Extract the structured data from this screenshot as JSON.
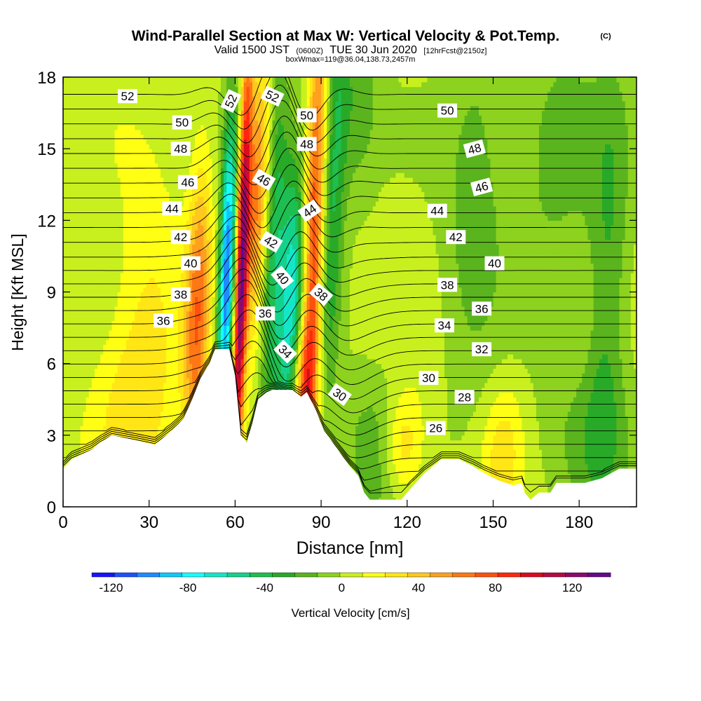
{
  "chart_data": {
    "type": "heatmap",
    "title": "Wind-Parallel Section at Max W: Vertical Velocity & Pot.Temp.",
    "title_mark": "(C)",
    "subtitle_parts": [
      "Valid 1500 JST",
      "(0600Z)",
      "TUE 30 Jun 2020",
      "[12hrFcst@2150z]"
    ],
    "subtitle2": "boxWmax=119@36.04,138.73,2457m",
    "xlabel": "Distance [nm]",
    "ylabel": "Height [Kft MSL]",
    "xlim": [
      0,
      200
    ],
    "ylim": [
      0,
      18
    ],
    "x_ticks": [
      "0",
      "30",
      "60",
      "90",
      "120",
      "150",
      "180"
    ],
    "y_ticks": [
      "0",
      "3",
      "6",
      "9",
      "12",
      "15",
      "18"
    ],
    "colorbar": {
      "label": "Vertical Velocity [cm/s]",
      "range": [
        -130,
        140
      ],
      "tick_labels": [
        "-120",
        "-80",
        "-40",
        "0",
        "40",
        "80",
        "120"
      ],
      "colors": [
        "#1414ff",
        "#1e50ff",
        "#1e8cff",
        "#0fc8ff",
        "#14ffff",
        "#14e6c8",
        "#14d28c",
        "#1ebe50",
        "#28aa28",
        "#5ab41e",
        "#8cd21e",
        "#c8f01e",
        "#ffff14",
        "#ffe614",
        "#ffc81e",
        "#ffa01e",
        "#ff7814",
        "#ff500f",
        "#ff280f",
        "#dc0a1e",
        "#b40a46",
        "#8c0a6e",
        "#640a8c"
      ]
    },
    "velocity_features": [
      {
        "x": 24,
        "z": 3.8,
        "w": 22,
        "sx": 10,
        "sz": 3.0
      },
      {
        "x": 30,
        "z": 8.5,
        "w": 18,
        "sx": 8,
        "sz": 4.0
      },
      {
        "x": 47,
        "z": 8.0,
        "w": 60,
        "sx": 3,
        "sz": 4.5
      },
      {
        "x": 57,
        "z": 9.5,
        "w": -115,
        "sx": 2,
        "sz": 4.5
      },
      {
        "x": 62,
        "z": 9.5,
        "w": 119,
        "sx": 1.6,
        "sz": 7
      },
      {
        "x": 67,
        "z": 13,
        "w": 60,
        "sx": 3,
        "sz": 4
      },
      {
        "x": 73,
        "z": 11,
        "w": -50,
        "sx": 3,
        "sz": 6
      },
      {
        "x": 80,
        "z": 8,
        "w": -70,
        "sx": 3,
        "sz": 5
      },
      {
        "x": 87,
        "z": 10,
        "w": 80,
        "sx": 2.5,
        "sz": 8
      },
      {
        "x": 84,
        "z": 5,
        "w": 50,
        "sx": 3,
        "sz": 2
      },
      {
        "x": 93,
        "z": 13,
        "w": -40,
        "sx": 3,
        "sz": 6
      },
      {
        "x": 110,
        "z": 2.2,
        "w": -25,
        "sx": 8,
        "sz": 2.5
      },
      {
        "x": 120,
        "z": 2.5,
        "w": 35,
        "sx": 5,
        "sz": 1.6
      },
      {
        "x": 142,
        "z": 13,
        "w": -22,
        "sx": 8,
        "sz": 6
      },
      {
        "x": 155,
        "z": 2.5,
        "w": 25,
        "sx": 5,
        "sz": 2
      },
      {
        "x": 170,
        "z": 15,
        "w": -22,
        "sx": 12,
        "sz": 4
      },
      {
        "x": 190,
        "z": 9,
        "w": -28,
        "sx": 5,
        "sz": 6
      },
      {
        "x": 185,
        "z": 3,
        "w": -20,
        "sx": 12,
        "sz": 2.5
      },
      {
        "x": 100,
        "z": 17,
        "w": -25,
        "sx": 6,
        "sz": 3
      }
    ],
    "terrain": [
      [
        0,
        1.6
      ],
      [
        3,
        2.0
      ],
      [
        10,
        2.4
      ],
      [
        13,
        2.7
      ],
      [
        17,
        3.0
      ],
      [
        25,
        2.8
      ],
      [
        32,
        2.6
      ],
      [
        38,
        3.2
      ],
      [
        42,
        3.7
      ],
      [
        45,
        4.5
      ],
      [
        48,
        5.4
      ],
      [
        51,
        6.0
      ],
      [
        53,
        6.6
      ],
      [
        58,
        6.6
      ],
      [
        60,
        5.5
      ],
      [
        62,
        3.0
      ],
      [
        64,
        2.7
      ],
      [
        66,
        3.5
      ],
      [
        68,
        4.5
      ],
      [
        71,
        4.8
      ],
      [
        73,
        4.9
      ],
      [
        80,
        4.9
      ],
      [
        83,
        4.6
      ],
      [
        85,
        4.8
      ],
      [
        88,
        4.1
      ],
      [
        91,
        3.2
      ],
      [
        94,
        2.7
      ],
      [
        97,
        2.2
      ],
      [
        100,
        1.7
      ],
      [
        103,
        1.3
      ],
      [
        105,
        0.6
      ],
      [
        107,
        0.3
      ],
      [
        118,
        0.3
      ],
      [
        120,
        0.6
      ],
      [
        123,
        1.0
      ],
      [
        126,
        1.4
      ],
      [
        129,
        1.7
      ],
      [
        132,
        2.0
      ],
      [
        138,
        2.0
      ],
      [
        143,
        1.7
      ],
      [
        147,
        1.4
      ],
      [
        152,
        1.1
      ],
      [
        157,
        0.9
      ],
      [
        160,
        1.0
      ],
      [
        161,
        0.6
      ],
      [
        163,
        0.3
      ],
      [
        166,
        0.6
      ],
      [
        170,
        0.6
      ],
      [
        172,
        1.0
      ],
      [
        182,
        1.0
      ],
      [
        188,
        1.2
      ],
      [
        194,
        1.6
      ],
      [
        200,
        1.6
      ]
    ],
    "pot_temp_contour_values": [
      24,
      25,
      26,
      27,
      28,
      29,
      30,
      31,
      32,
      33,
      34,
      35,
      36,
      37,
      38,
      39,
      40,
      41,
      42,
      43,
      44,
      45,
      46,
      47,
      48,
      49,
      50,
      51,
      52,
      53
    ],
    "pot_temp_labels": [
      {
        "text": "52",
        "x": 22.5,
        "z": 17.2,
        "rot": 0
      },
      {
        "text": "50",
        "x": 41.5,
        "z": 16.1,
        "rot": 0
      },
      {
        "text": "48",
        "x": 41,
        "z": 15.0,
        "rot": 0
      },
      {
        "text": "46",
        "x": 43.5,
        "z": 13.6,
        "rot": 0
      },
      {
        "text": "44",
        "x": 38,
        "z": 12.5,
        "rot": 0
      },
      {
        "text": "42",
        "x": 41,
        "z": 11.3,
        "rot": 0
      },
      {
        "text": "40",
        "x": 44.5,
        "z": 10.2,
        "rot": 0
      },
      {
        "text": "38",
        "x": 41,
        "z": 8.9,
        "rot": 0
      },
      {
        "text": "36",
        "x": 35,
        "z": 7.8,
        "rot": 0
      },
      {
        "text": "52",
        "x": 58.5,
        "z": 17.0,
        "rot": -65
      },
      {
        "text": "52",
        "x": 73,
        "z": 17.2,
        "rot": 25
      },
      {
        "text": "50",
        "x": 85,
        "z": 16.4,
        "rot": 0
      },
      {
        "text": "48",
        "x": 85,
        "z": 15.2,
        "rot": 0
      },
      {
        "text": "46",
        "x": 70,
        "z": 13.7,
        "rot": 30
      },
      {
        "text": "44",
        "x": 86,
        "z": 12.4,
        "rot": -35
      },
      {
        "text": "42",
        "x": 72.5,
        "z": 11.1,
        "rot": 30
      },
      {
        "text": "40",
        "x": 76.5,
        "z": 9.6,
        "rot": 50
      },
      {
        "text": "38",
        "x": 90,
        "z": 8.9,
        "rot": 40
      },
      {
        "text": "36",
        "x": 70.5,
        "z": 8.1,
        "rot": 0
      },
      {
        "text": "34",
        "x": 77.5,
        "z": 6.5,
        "rot": 45
      },
      {
        "text": "30",
        "x": 96.5,
        "z": 4.7,
        "rot": 35
      },
      {
        "text": "50",
        "x": 134,
        "z": 16.6,
        "rot": 0
      },
      {
        "text": "48",
        "x": 143.5,
        "z": 15.0,
        "rot": -15
      },
      {
        "text": "46",
        "x": 146,
        "z": 13.4,
        "rot": -15
      },
      {
        "text": "44",
        "x": 130.5,
        "z": 12.4,
        "rot": 0
      },
      {
        "text": "42",
        "x": 137,
        "z": 11.3,
        "rot": 0
      },
      {
        "text": "40",
        "x": 150.5,
        "z": 10.2,
        "rot": 0
      },
      {
        "text": "38",
        "x": 134,
        "z": 9.3,
        "rot": 0
      },
      {
        "text": "36",
        "x": 146,
        "z": 8.3,
        "rot": 0
      },
      {
        "text": "34",
        "x": 133,
        "z": 7.6,
        "rot": 0
      },
      {
        "text": "32",
        "x": 146,
        "z": 6.6,
        "rot": 0
      },
      {
        "text": "30",
        "x": 127.5,
        "z": 5.4,
        "rot": 0
      },
      {
        "text": "28",
        "x": 140,
        "z": 4.6,
        "rot": 0
      },
      {
        "text": "26",
        "x": 130,
        "z": 3.3,
        "rot": 0
      }
    ]
  }
}
